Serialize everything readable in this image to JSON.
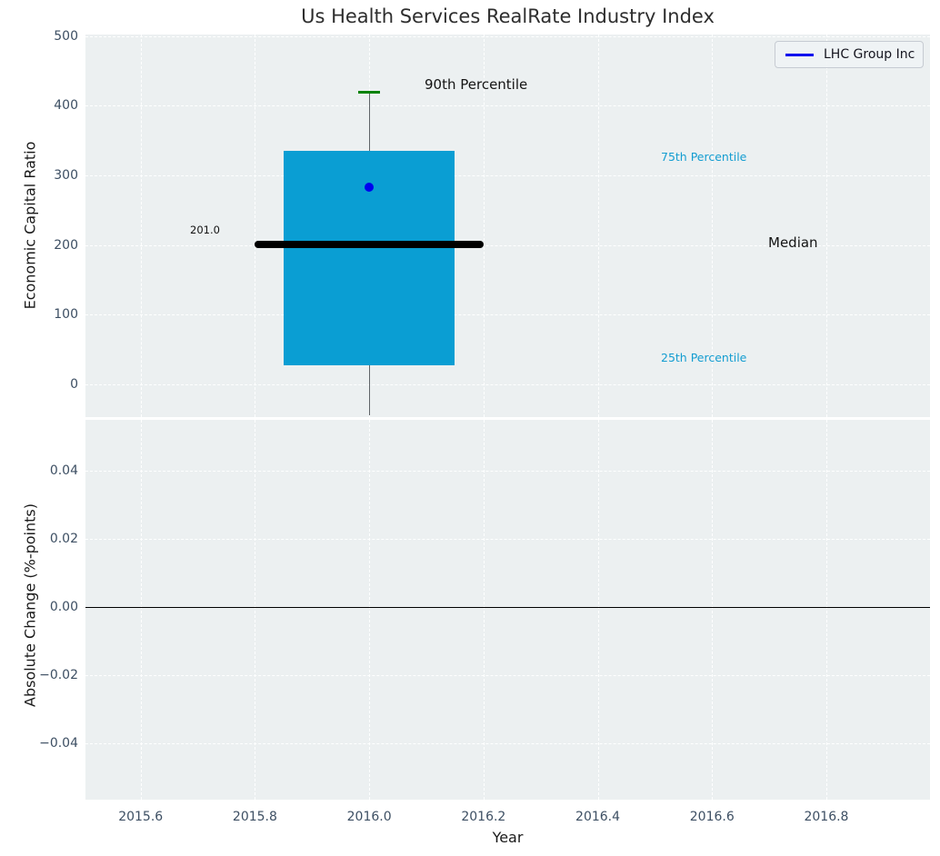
{
  "title": "Us Health Services RealRate Industry Index",
  "legend": {
    "label": "LHC Group Inc"
  },
  "axis_labels": {
    "top_y": "Economic Capital Ratio",
    "bottom_y": "Absolute Change (%-points)",
    "x": "Year"
  },
  "annotations": {
    "p90": "90th Percentile",
    "p75": "75th Percentile",
    "median": "Median",
    "p25": "25th Percentile",
    "median_value": "201.0"
  },
  "colors": {
    "axes_bg": "#ecf0f1",
    "grid": "#ffffff",
    "box_fill": "#0a9ed3",
    "median_line": "#000000",
    "p90_tick": "#068206",
    "whisker": "#5f6468",
    "company_marker": "#0000ee",
    "legend_line": "#0000ee",
    "annotation_cyan": "#149dd1",
    "zero_line": "#000000",
    "tick_text": "#3d4f63"
  },
  "chart_data": {
    "type": "box",
    "title": "Us Health Services RealRate Industry Index",
    "xlabel": "Year",
    "xlim": [
      2015.5034,
      2016.9814
    ],
    "x_ticks": [
      {
        "value": 2015.6,
        "label": "2015.6"
      },
      {
        "value": 2015.8,
        "label": "2015.8"
      },
      {
        "value": 2016.0,
        "label": "2016.0"
      },
      {
        "value": 2016.2,
        "label": "2016.2"
      },
      {
        "value": 2016.4,
        "label": "2016.4"
      },
      {
        "value": 2016.6,
        "label": "2016.6"
      },
      {
        "value": 2016.8,
        "label": "2016.8"
      }
    ],
    "top_panel": {
      "ylabel": "Economic Capital Ratio",
      "ylim": [
        -47.0,
        502.2
      ],
      "y_ticks": [
        {
          "value": 0,
          "label": "0"
        },
        {
          "value": 100,
          "label": "100"
        },
        {
          "value": 200,
          "label": "200"
        },
        {
          "value": 300,
          "label": "300"
        },
        {
          "value": 400,
          "label": "400"
        },
        {
          "value": 500,
          "label": "500"
        }
      ],
      "box": {
        "x": 2016.0,
        "box_half_width_years": 0.15,
        "median_half_width_years": 0.2,
        "p25": 27,
        "median": 201.0,
        "p75": 335,
        "p90": 420,
        "whisker_low_end": -44,
        "company_value": 283,
        "company_name": "LHC Group Inc"
      }
    },
    "bottom_panel": {
      "ylabel": "Absolute Change (%-points)",
      "ylim": [
        -0.05653,
        0.05493
      ],
      "y_ticks": [
        {
          "value": 0.04,
          "label": "0.04"
        },
        {
          "value": 0.02,
          "label": "0.02"
        },
        {
          "value": 0.0,
          "label": "0.00"
        },
        {
          "value": -0.02,
          "label": "−0.02"
        },
        {
          "value": -0.04,
          "label": "−0.04"
        }
      ],
      "zero_line": 0.0
    }
  }
}
